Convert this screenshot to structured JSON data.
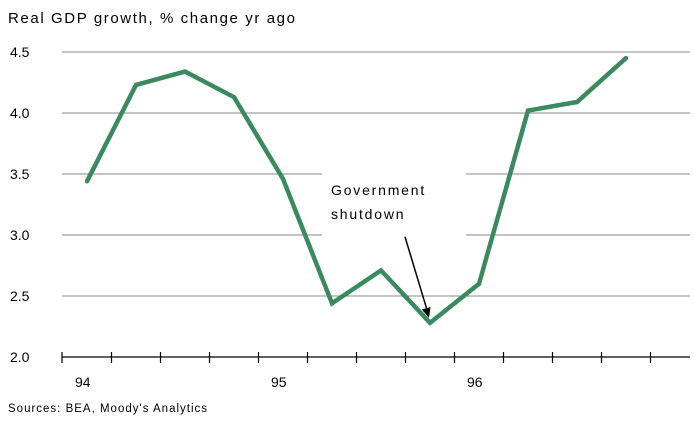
{
  "chart_data": {
    "type": "line",
    "title": "Real GDP growth, % change yr ago",
    "source": "Sources: BEA, Moody's Analytics",
    "xlabel": "",
    "ylabel": "",
    "ylim": [
      2.0,
      4.5
    ],
    "yticks": [
      "2.0",
      "2.5",
      "3.0",
      "3.5",
      "4.0",
      "4.5"
    ],
    "xticks": [
      "94",
      "95",
      "96"
    ],
    "grid": true,
    "line_color": "#3a8a5e",
    "series": [
      {
        "x": [
          "1994Q1",
          "1994Q2",
          "1994Q3",
          "1994Q4",
          "1995Q1",
          "1995Q2",
          "1995Q3",
          "1995Q4",
          "1996Q1",
          "1996Q2",
          "1996Q3",
          "1996Q4"
        ],
        "values": [
          3.44,
          4.23,
          4.34,
          4.13,
          3.46,
          2.44,
          2.71,
          2.28,
          2.6,
          4.02,
          4.09,
          4.45
        ]
      }
    ],
    "annotation": {
      "line1": "Government",
      "line2": "shutdown",
      "target_index": 7
    }
  }
}
